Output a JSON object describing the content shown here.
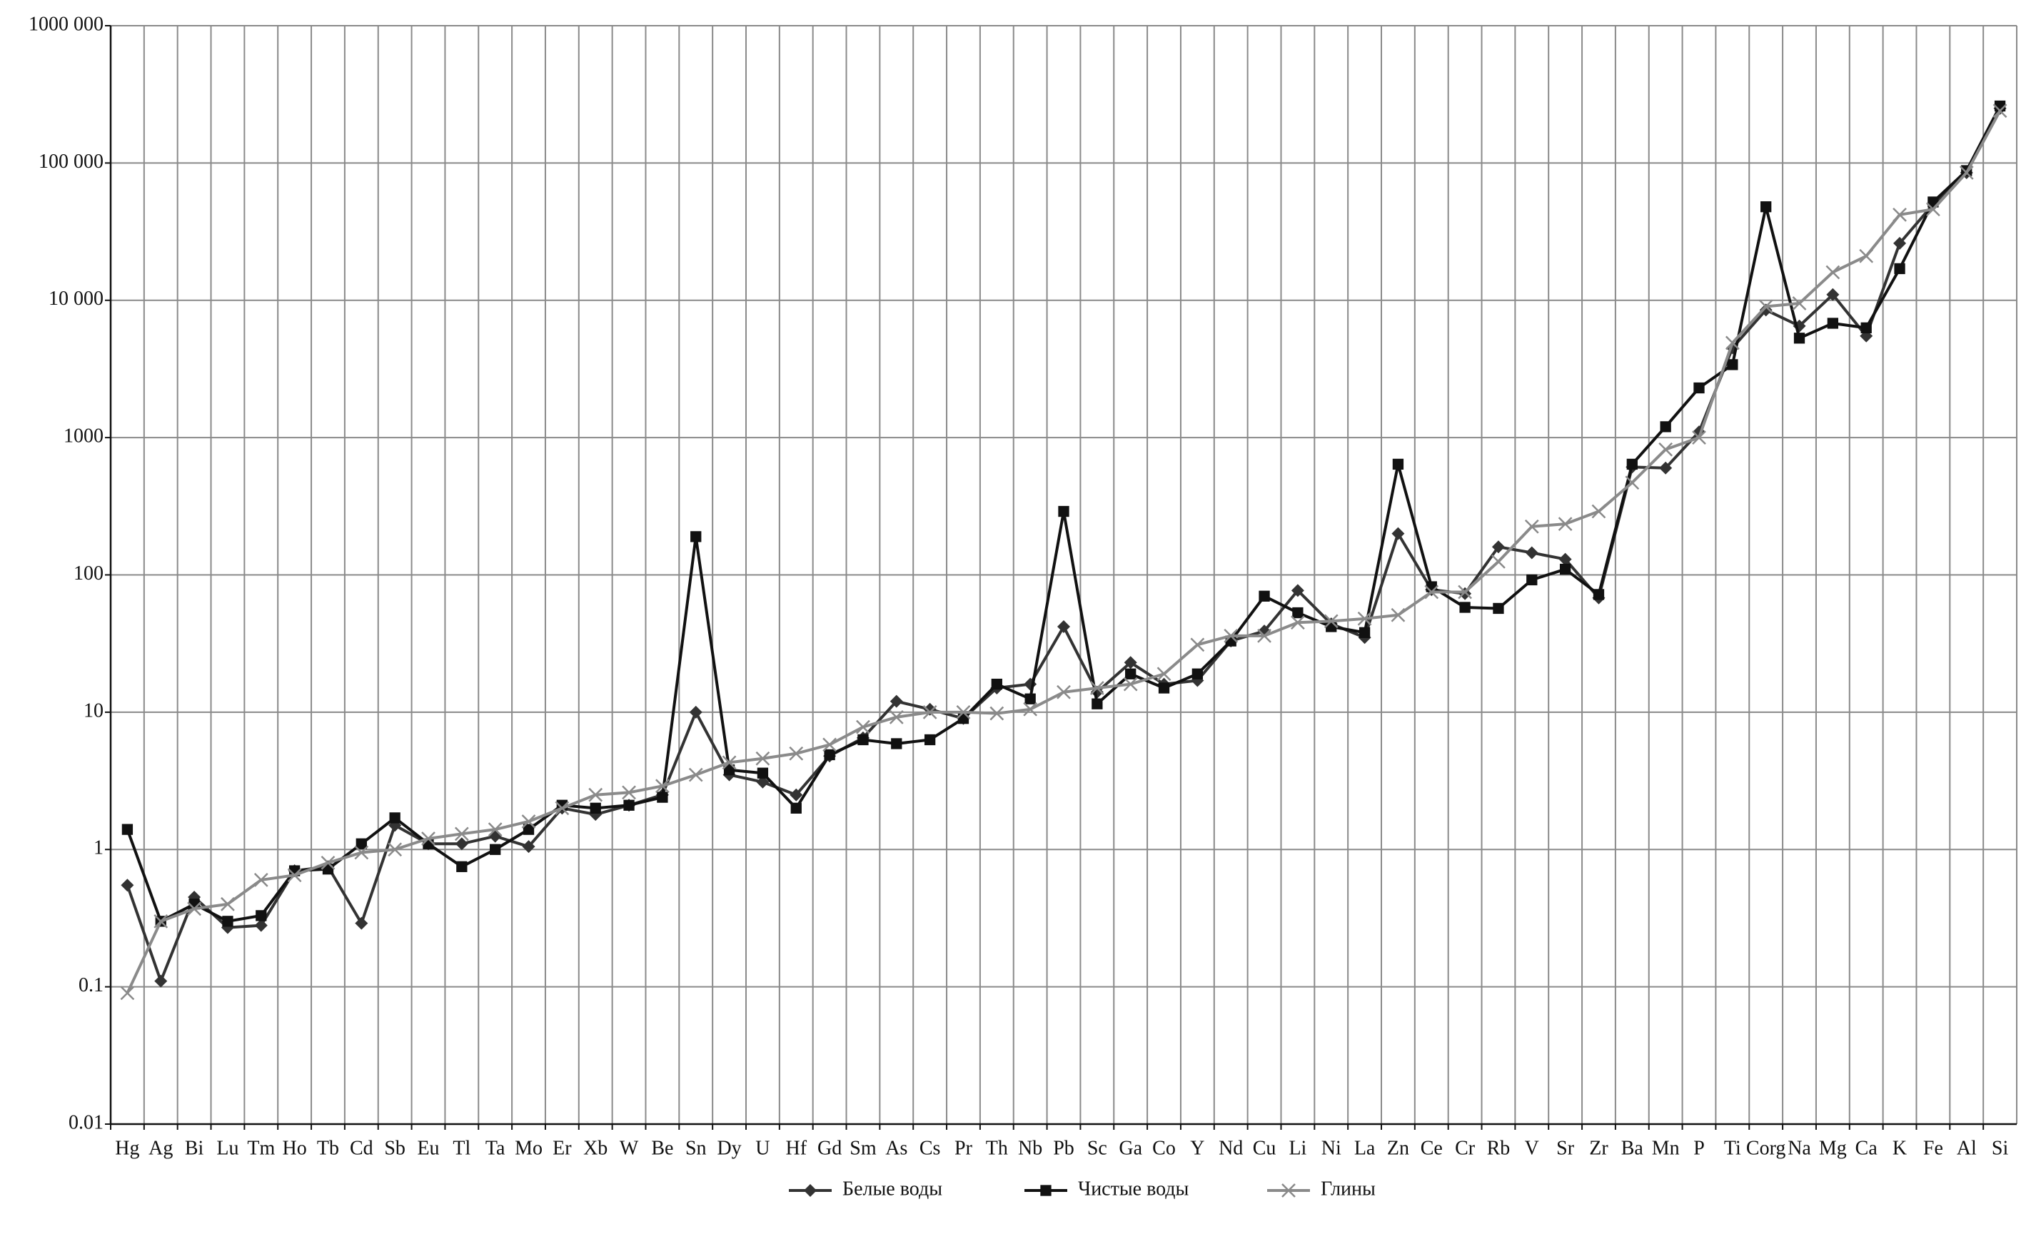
{
  "chart_data": {
    "type": "line",
    "log_scale": true,
    "grid": true,
    "legend": "bottom",
    "categories": [
      "Hg",
      "Ag",
      "Bi",
      "Lu",
      "Tm",
      "Ho",
      "Tb",
      "Cd",
      "Sb",
      "Eu",
      "Tl",
      "Ta",
      "Mo",
      "Er",
      "Xb",
      "W",
      "Be",
      "Sn",
      "Dy",
      "U",
      "Hf",
      "Gd",
      "Sm",
      "As",
      "Cs",
      "Pr",
      "Th",
      "Nb",
      "Pb",
      "Sc",
      "Ga",
      "Co",
      "Y",
      "Nd",
      "Cu",
      "Li",
      "Ni",
      "La",
      "Zn",
      "Ce",
      "Cr",
      "Rb",
      "V",
      "Sr",
      "Zr",
      "Ba",
      "Mn",
      "P",
      "Ti",
      "Corg",
      "Na",
      "Mg",
      "Ca",
      "K",
      "Fe",
      "Al",
      "Si"
    ],
    "ylim": [
      0.01,
      1000000
    ],
    "yticks": [
      0.01,
      0.1,
      1,
      10,
      100,
      1000,
      {
        "value": 10000,
        "label": "10 000"
      },
      {
        "value": 100000,
        "label": "100 000"
      },
      {
        "value": 1000000,
        "label": "1000 000"
      }
    ],
    "series": [
      {
        "name": "Белые воды",
        "color": "#333333",
        "marker": "diamond",
        "values": [
          0.55,
          0.11,
          0.45,
          0.27,
          0.28,
          0.7,
          0.75,
          0.29,
          1.5,
          1.1,
          1.1,
          1.25,
          1.05,
          2.0,
          1.8,
          2.1,
          2.5,
          10,
          3.5,
          3.1,
          2.5,
          4.8,
          6.5,
          12,
          10.5,
          9,
          15,
          16,
          42,
          14,
          23,
          16,
          17,
          33,
          39,
          77,
          44,
          35,
          200,
          78,
          73,
          160,
          145,
          130,
          68,
          610,
          600,
          1100,
          4500,
          8500,
          6500,
          11000,
          5500,
          26000,
          50000,
          85000,
          250000
        ]
      },
      {
        "name": "Чистые воды",
        "color": "#111111",
        "marker": "square",
        "values": [
          1.4,
          0.3,
          0.4,
          0.3,
          0.33,
          0.7,
          0.72,
          1.1,
          1.7,
          1.1,
          0.75,
          1.0,
          1.4,
          2.1,
          2.0,
          2.1,
          2.4,
          190,
          3.8,
          3.6,
          2.0,
          4.9,
          6.3,
          5.9,
          6.3,
          9,
          16,
          12.5,
          290,
          11.5,
          19,
          15,
          19,
          33,
          70,
          53,
          42,
          38,
          640,
          82,
          58,
          57,
          92,
          110,
          72,
          640,
          1200,
          2300,
          3400,
          48000,
          5300,
          6800,
          6300,
          17000,
          52000,
          88000,
          260000
        ]
      },
      {
        "name": "Глины",
        "color": "#8a8a8a",
        "marker": "x",
        "values": [
          0.09,
          0.3,
          0.37,
          0.4,
          0.6,
          0.65,
          0.8,
          0.95,
          1.0,
          1.2,
          1.3,
          1.4,
          1.6,
          2.0,
          2.5,
          2.6,
          2.9,
          3.5,
          4.3,
          4.6,
          5.0,
          5.8,
          7.8,
          9.2,
          10,
          10,
          9.8,
          10.5,
          14,
          15,
          16,
          19,
          31,
          36,
          36,
          45,
          46,
          48,
          51,
          75,
          75,
          125,
          225,
          235,
          290,
          470,
          820,
          1000,
          4900,
          9000,
          9500,
          16000,
          21000,
          42000,
          46000,
          85000,
          240000
        ]
      }
    ]
  }
}
